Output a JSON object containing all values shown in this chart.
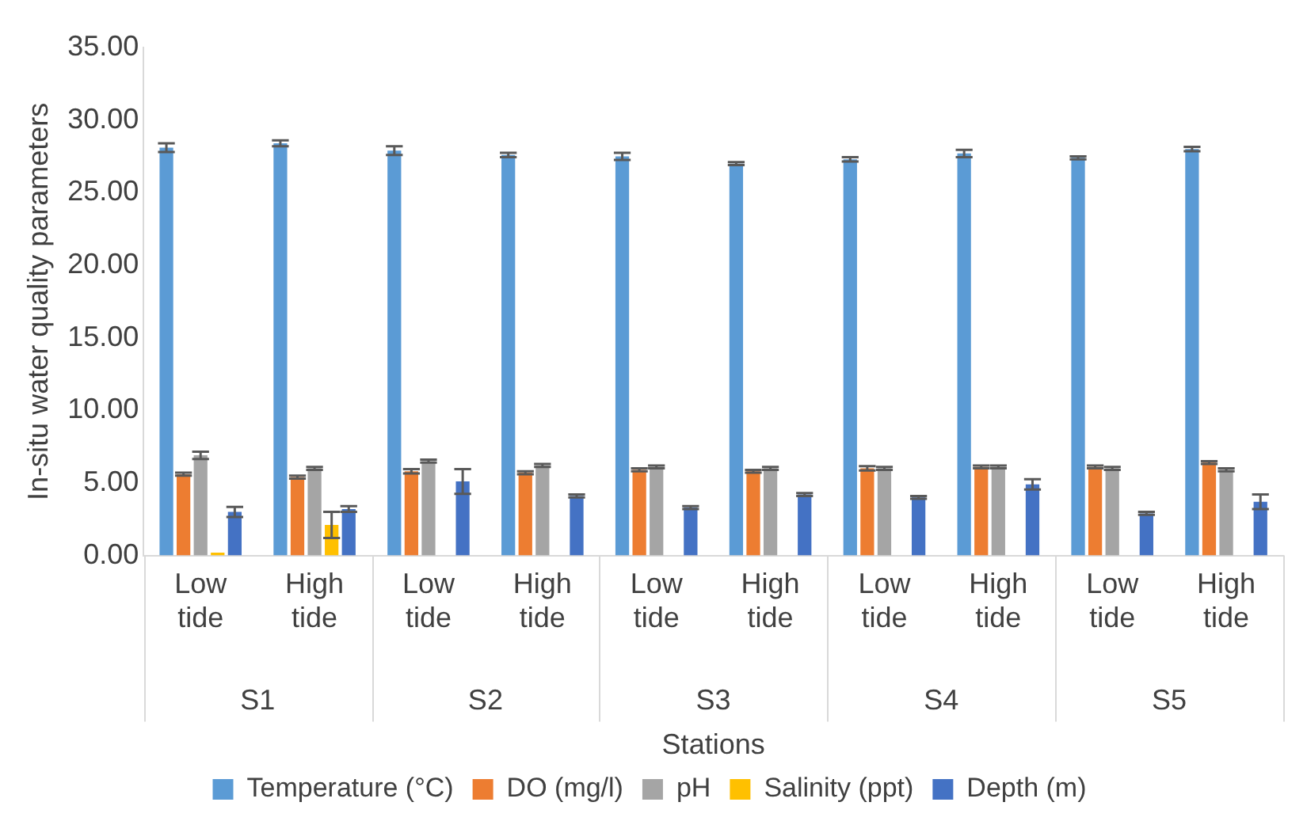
{
  "chart_data": {
    "type": "bar",
    "xlabel": "Stations",
    "ylabel": "In-situ water quality parameters",
    "categories": [
      "Low tide",
      "High tide",
      "Low tide",
      "High tide",
      "Low tide",
      "High tide",
      "Low tide",
      "High tide",
      "Low tide",
      "High tide"
    ],
    "annotations": [
      "S1",
      "S2",
      "S3",
      "S4",
      "S5"
    ],
    "series": [
      {
        "name": "Temperature (°C)",
        "color": "#5b9bd5",
        "values": [
          28.1,
          28.4,
          27.9,
          27.6,
          27.5,
          27.0,
          27.3,
          27.7,
          27.4,
          28.0
        ],
        "errors": [
          0.3,
          0.2,
          0.3,
          0.15,
          0.25,
          0.1,
          0.15,
          0.25,
          0.1,
          0.15
        ]
      },
      {
        "name": "DO (mg/l)",
        "color": "#ed7d31",
        "values": [
          5.6,
          5.4,
          5.8,
          5.7,
          5.9,
          5.8,
          6.0,
          6.1,
          6.1,
          6.4
        ],
        "errors": [
          0.1,
          0.1,
          0.15,
          0.1,
          0.1,
          0.1,
          0.15,
          0.1,
          0.1,
          0.1
        ]
      },
      {
        "name": "pH",
        "color": "#a5a5a5",
        "values": [
          6.9,
          6.0,
          6.5,
          6.2,
          6.1,
          6.0,
          6.0,
          6.1,
          6.0,
          5.9
        ],
        "errors": [
          0.25,
          0.1,
          0.1,
          0.1,
          0.1,
          0.1,
          0.1,
          0.1,
          0.1,
          0.1
        ]
      },
      {
        "name": "Salinity (ppt)",
        "color": "#ffc000",
        "values": [
          0.2,
          2.1,
          0,
          0,
          0,
          0,
          0,
          0,
          0,
          0
        ],
        "errors": [
          null,
          0.9,
          null,
          null,
          null,
          null,
          null,
          null,
          null,
          null
        ]
      },
      {
        "name": "Depth (m)",
        "color": "#4472c4",
        "values": [
          3.0,
          3.2,
          5.1,
          4.1,
          3.3,
          4.2,
          4.0,
          4.9,
          2.9,
          3.7
        ],
        "errors": [
          0.35,
          0.2,
          0.85,
          0.1,
          0.1,
          0.1,
          0.1,
          0.35,
          0.1,
          0.5
        ]
      }
    ],
    "ylim": [
      0,
      35
    ],
    "yticks": [
      {
        "value": 0,
        "label": "0.00"
      },
      {
        "value": 5,
        "label": "5.00"
      },
      {
        "value": 10,
        "label": "10.00"
      },
      {
        "value": 15,
        "label": "15.00"
      },
      {
        "value": 20,
        "label": "20.00"
      },
      {
        "value": 25,
        "label": "25.00"
      },
      {
        "value": 30,
        "label": "30.00"
      },
      {
        "value": 35,
        "label": "35.00"
      }
    ],
    "grid": false,
    "legend": "bottom"
  }
}
